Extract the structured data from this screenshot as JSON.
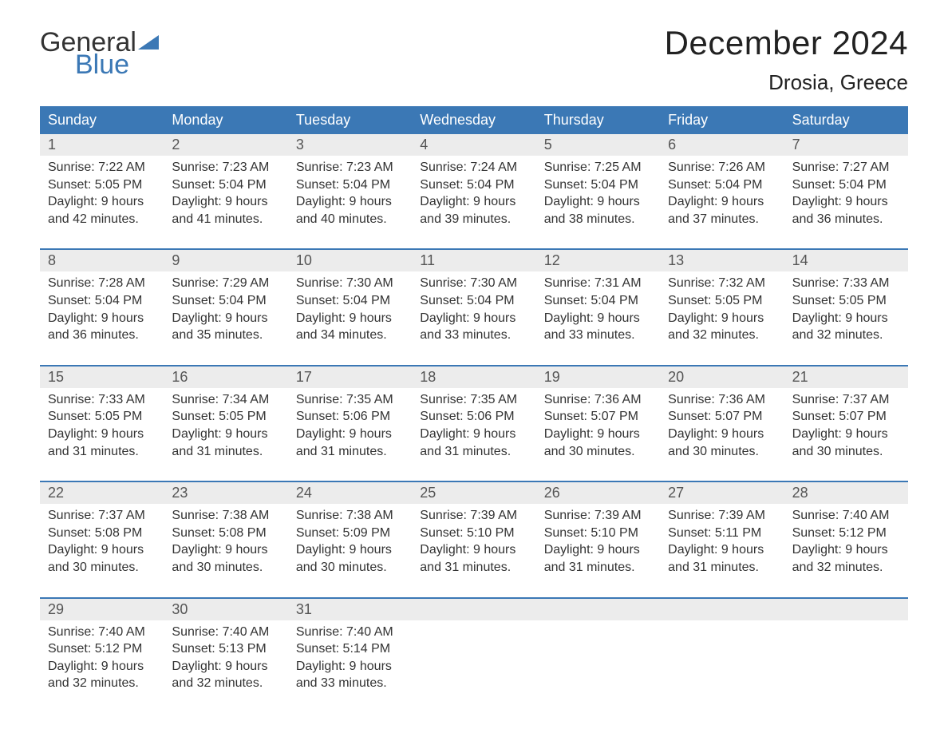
{
  "logo": {
    "line1": "General",
    "line2": "Blue"
  },
  "title": "December 2024",
  "location": "Drosia, Greece",
  "colors": {
    "header_bg": "#3b78b5",
    "header_text": "#ffffff",
    "daynum_bg": "#ececec",
    "daynum_text": "#555555",
    "body_text": "#333333",
    "accent_line": "#3b78b5",
    "background": "#ffffff"
  },
  "typography": {
    "title_fontsize": 42,
    "location_fontsize": 26,
    "weekday_fontsize": 18,
    "daynum_fontsize": 18,
    "details_fontsize": 16,
    "font_family": "Arial"
  },
  "weekdays": [
    "Sunday",
    "Monday",
    "Tuesday",
    "Wednesday",
    "Thursday",
    "Friday",
    "Saturday"
  ],
  "weeks": [
    [
      {
        "day": "1",
        "sunrise": "7:22 AM",
        "sunset": "5:05 PM",
        "daylight": "9 hours and 42 minutes."
      },
      {
        "day": "2",
        "sunrise": "7:23 AM",
        "sunset": "5:04 PM",
        "daylight": "9 hours and 41 minutes."
      },
      {
        "day": "3",
        "sunrise": "7:23 AM",
        "sunset": "5:04 PM",
        "daylight": "9 hours and 40 minutes."
      },
      {
        "day": "4",
        "sunrise": "7:24 AM",
        "sunset": "5:04 PM",
        "daylight": "9 hours and 39 minutes."
      },
      {
        "day": "5",
        "sunrise": "7:25 AM",
        "sunset": "5:04 PM",
        "daylight": "9 hours and 38 minutes."
      },
      {
        "day": "6",
        "sunrise": "7:26 AM",
        "sunset": "5:04 PM",
        "daylight": "9 hours and 37 minutes."
      },
      {
        "day": "7",
        "sunrise": "7:27 AM",
        "sunset": "5:04 PM",
        "daylight": "9 hours and 36 minutes."
      }
    ],
    [
      {
        "day": "8",
        "sunrise": "7:28 AM",
        "sunset": "5:04 PM",
        "daylight": "9 hours and 36 minutes."
      },
      {
        "day": "9",
        "sunrise": "7:29 AM",
        "sunset": "5:04 PM",
        "daylight": "9 hours and 35 minutes."
      },
      {
        "day": "10",
        "sunrise": "7:30 AM",
        "sunset": "5:04 PM",
        "daylight": "9 hours and 34 minutes."
      },
      {
        "day": "11",
        "sunrise": "7:30 AM",
        "sunset": "5:04 PM",
        "daylight": "9 hours and 33 minutes."
      },
      {
        "day": "12",
        "sunrise": "7:31 AM",
        "sunset": "5:04 PM",
        "daylight": "9 hours and 33 minutes."
      },
      {
        "day": "13",
        "sunrise": "7:32 AM",
        "sunset": "5:05 PM",
        "daylight": "9 hours and 32 minutes."
      },
      {
        "day": "14",
        "sunrise": "7:33 AM",
        "sunset": "5:05 PM",
        "daylight": "9 hours and 32 minutes."
      }
    ],
    [
      {
        "day": "15",
        "sunrise": "7:33 AM",
        "sunset": "5:05 PM",
        "daylight": "9 hours and 31 minutes."
      },
      {
        "day": "16",
        "sunrise": "7:34 AM",
        "sunset": "5:05 PM",
        "daylight": "9 hours and 31 minutes."
      },
      {
        "day": "17",
        "sunrise": "7:35 AM",
        "sunset": "5:06 PM",
        "daylight": "9 hours and 31 minutes."
      },
      {
        "day": "18",
        "sunrise": "7:35 AM",
        "sunset": "5:06 PM",
        "daylight": "9 hours and 31 minutes."
      },
      {
        "day": "19",
        "sunrise": "7:36 AM",
        "sunset": "5:07 PM",
        "daylight": "9 hours and 30 minutes."
      },
      {
        "day": "20",
        "sunrise": "7:36 AM",
        "sunset": "5:07 PM",
        "daylight": "9 hours and 30 minutes."
      },
      {
        "day": "21",
        "sunrise": "7:37 AM",
        "sunset": "5:07 PM",
        "daylight": "9 hours and 30 minutes."
      }
    ],
    [
      {
        "day": "22",
        "sunrise": "7:37 AM",
        "sunset": "5:08 PM",
        "daylight": "9 hours and 30 minutes."
      },
      {
        "day": "23",
        "sunrise": "7:38 AM",
        "sunset": "5:08 PM",
        "daylight": "9 hours and 30 minutes."
      },
      {
        "day": "24",
        "sunrise": "7:38 AM",
        "sunset": "5:09 PM",
        "daylight": "9 hours and 30 minutes."
      },
      {
        "day": "25",
        "sunrise": "7:39 AM",
        "sunset": "5:10 PM",
        "daylight": "9 hours and 31 minutes."
      },
      {
        "day": "26",
        "sunrise": "7:39 AM",
        "sunset": "5:10 PM",
        "daylight": "9 hours and 31 minutes."
      },
      {
        "day": "27",
        "sunrise": "7:39 AM",
        "sunset": "5:11 PM",
        "daylight": "9 hours and 31 minutes."
      },
      {
        "day": "28",
        "sunrise": "7:40 AM",
        "sunset": "5:12 PM",
        "daylight": "9 hours and 32 minutes."
      }
    ],
    [
      {
        "day": "29",
        "sunrise": "7:40 AM",
        "sunset": "5:12 PM",
        "daylight": "9 hours and 32 minutes."
      },
      {
        "day": "30",
        "sunrise": "7:40 AM",
        "sunset": "5:13 PM",
        "daylight": "9 hours and 32 minutes."
      },
      {
        "day": "31",
        "sunrise": "7:40 AM",
        "sunset": "5:14 PM",
        "daylight": "9 hours and 33 minutes."
      },
      null,
      null,
      null,
      null
    ]
  ],
  "labels": {
    "sunrise_prefix": "Sunrise: ",
    "sunset_prefix": "Sunset: ",
    "daylight_prefix": "Daylight: "
  }
}
